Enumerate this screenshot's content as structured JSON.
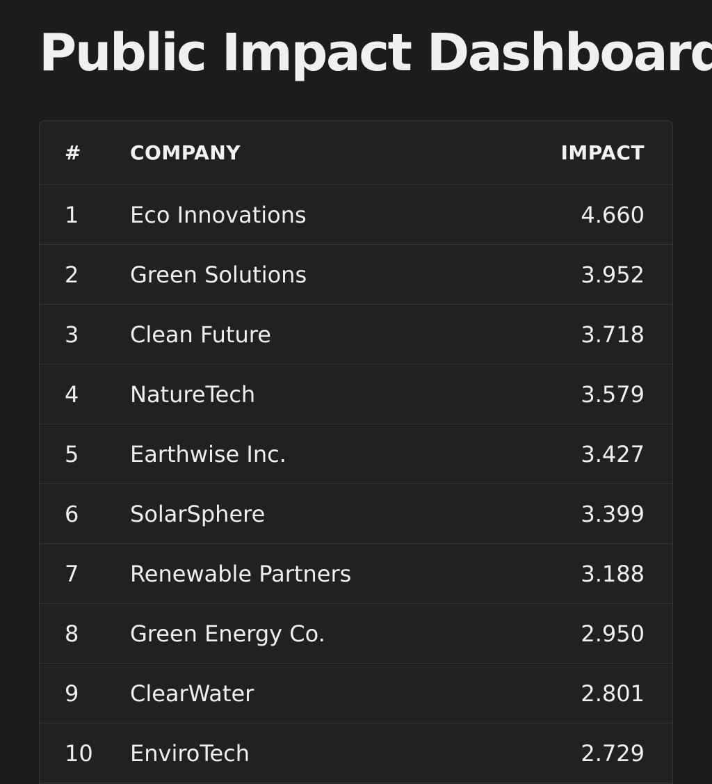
{
  "page": {
    "title": "Public Impact Dashboard"
  },
  "table": {
    "headers": {
      "rank": "#",
      "company": "COMPANY",
      "impact": "IMPACT"
    },
    "rows": [
      {
        "rank": "1",
        "company": "Eco Innovations",
        "impact": "4.660"
      },
      {
        "rank": "2",
        "company": "Green Solutions",
        "impact": "3.952"
      },
      {
        "rank": "3",
        "company": "Clean Future",
        "impact": "3.718"
      },
      {
        "rank": "4",
        "company": "NatureTech",
        "impact": "3.579"
      },
      {
        "rank": "5",
        "company": "Earthwise Inc.",
        "impact": "3.427"
      },
      {
        "rank": "6",
        "company": "SolarSphere",
        "impact": "3.399"
      },
      {
        "rank": "7",
        "company": "Renewable Partners",
        "impact": "3.188"
      },
      {
        "rank": "8",
        "company": "Green Energy Co.",
        "impact": "2.950"
      },
      {
        "rank": "9",
        "company": "ClearWater",
        "impact": "2.801"
      },
      {
        "rank": "10",
        "company": "EnviroTech",
        "impact": "2.729"
      }
    ]
  },
  "colors": {
    "background": "#1c1c1c",
    "card": "#212121",
    "divider": "#343434",
    "text": "#f2f2f2"
  }
}
